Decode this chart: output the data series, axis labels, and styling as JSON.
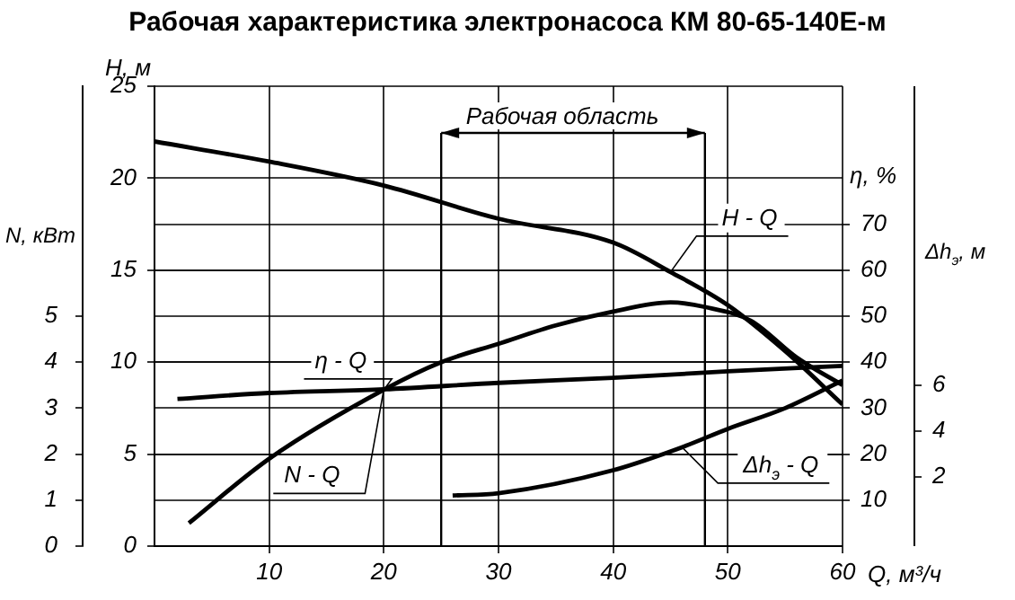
{
  "chart_data": [
    {
      "type": "line",
      "title": "Рабочая характеристика электронасоса КМ 80-65-140Е-м",
      "xlabel": "Q, м³/ч",
      "ylabel": "H, м",
      "y2label": "N, кВт",
      "y3label": "η, %",
      "xlim": [
        0,
        60
      ],
      "xticks": [
        10,
        20,
        30,
        40,
        50,
        60
      ],
      "ylim": [
        0,
        25
      ],
      "yticks": [
        0,
        5,
        10,
        15,
        20,
        25
      ],
      "y2lim": [
        0,
        10
      ],
      "y2ticks": [
        0,
        1,
        2,
        3,
        4,
        5
      ],
      "y3lim": [
        0,
        100
      ],
      "y3ticks": [
        10,
        20,
        30,
        40,
        50,
        60,
        70
      ],
      "grid": true,
      "legend": false,
      "marker": "none",
      "line_style": "solid",
      "ref_lines": [
        {
          "axis": "x",
          "value": 25
        },
        {
          "axis": "x",
          "value": 48
        }
      ],
      "annotations": [
        "Рабочая область"
      ],
      "series": [
        {
          "name": "H - Q",
          "color": "#000000",
          "x": [
            0,
            10,
            20,
            30,
            40,
            45,
            50,
            55,
            60
          ],
          "values": [
            22,
            20.9,
            19.6,
            17.8,
            16.5,
            14.9,
            13.1,
            10.6,
            7.7
          ]
        },
        {
          "name": "η - Q",
          "color": "#000000",
          "axis": "y3",
          "x": [
            3,
            10,
            20,
            25,
            30,
            35,
            40,
            45,
            48,
            52,
            56,
            60
          ],
          "values": [
            5,
            19,
            34,
            40,
            44,
            48,
            51,
            53,
            52,
            49,
            41,
            35
          ]
        },
        {
          "name": "N - Q",
          "color": "#000000",
          "axis": "y2",
          "x": [
            2,
            10,
            20,
            30,
            40,
            50,
            60
          ],
          "values": [
            3.2,
            3.33,
            3.41,
            3.55,
            3.66,
            3.8,
            3.92
          ]
        }
      ]
    },
    {
      "type": "line",
      "ylabel": "Δh$_{э}$, м",
      "tick_labels": "y",
      "xlim": [
        0,
        60
      ],
      "ylim": [
        -1,
        19
      ],
      "yticks": [
        2,
        4,
        6
      ],
      "legend": false,
      "marker": "none",
      "line_style": "solid",
      "series": [
        {
          "name": "Δh$_{э}$ - Q",
          "color": "#000000",
          "x": [
            26,
            30,
            40,
            46,
            50,
            55,
            60
          ],
          "values": [
            1.2,
            1.3,
            2.3,
            3.3,
            4.1,
            5.0,
            6.2
          ]
        }
      ]
    }
  ]
}
